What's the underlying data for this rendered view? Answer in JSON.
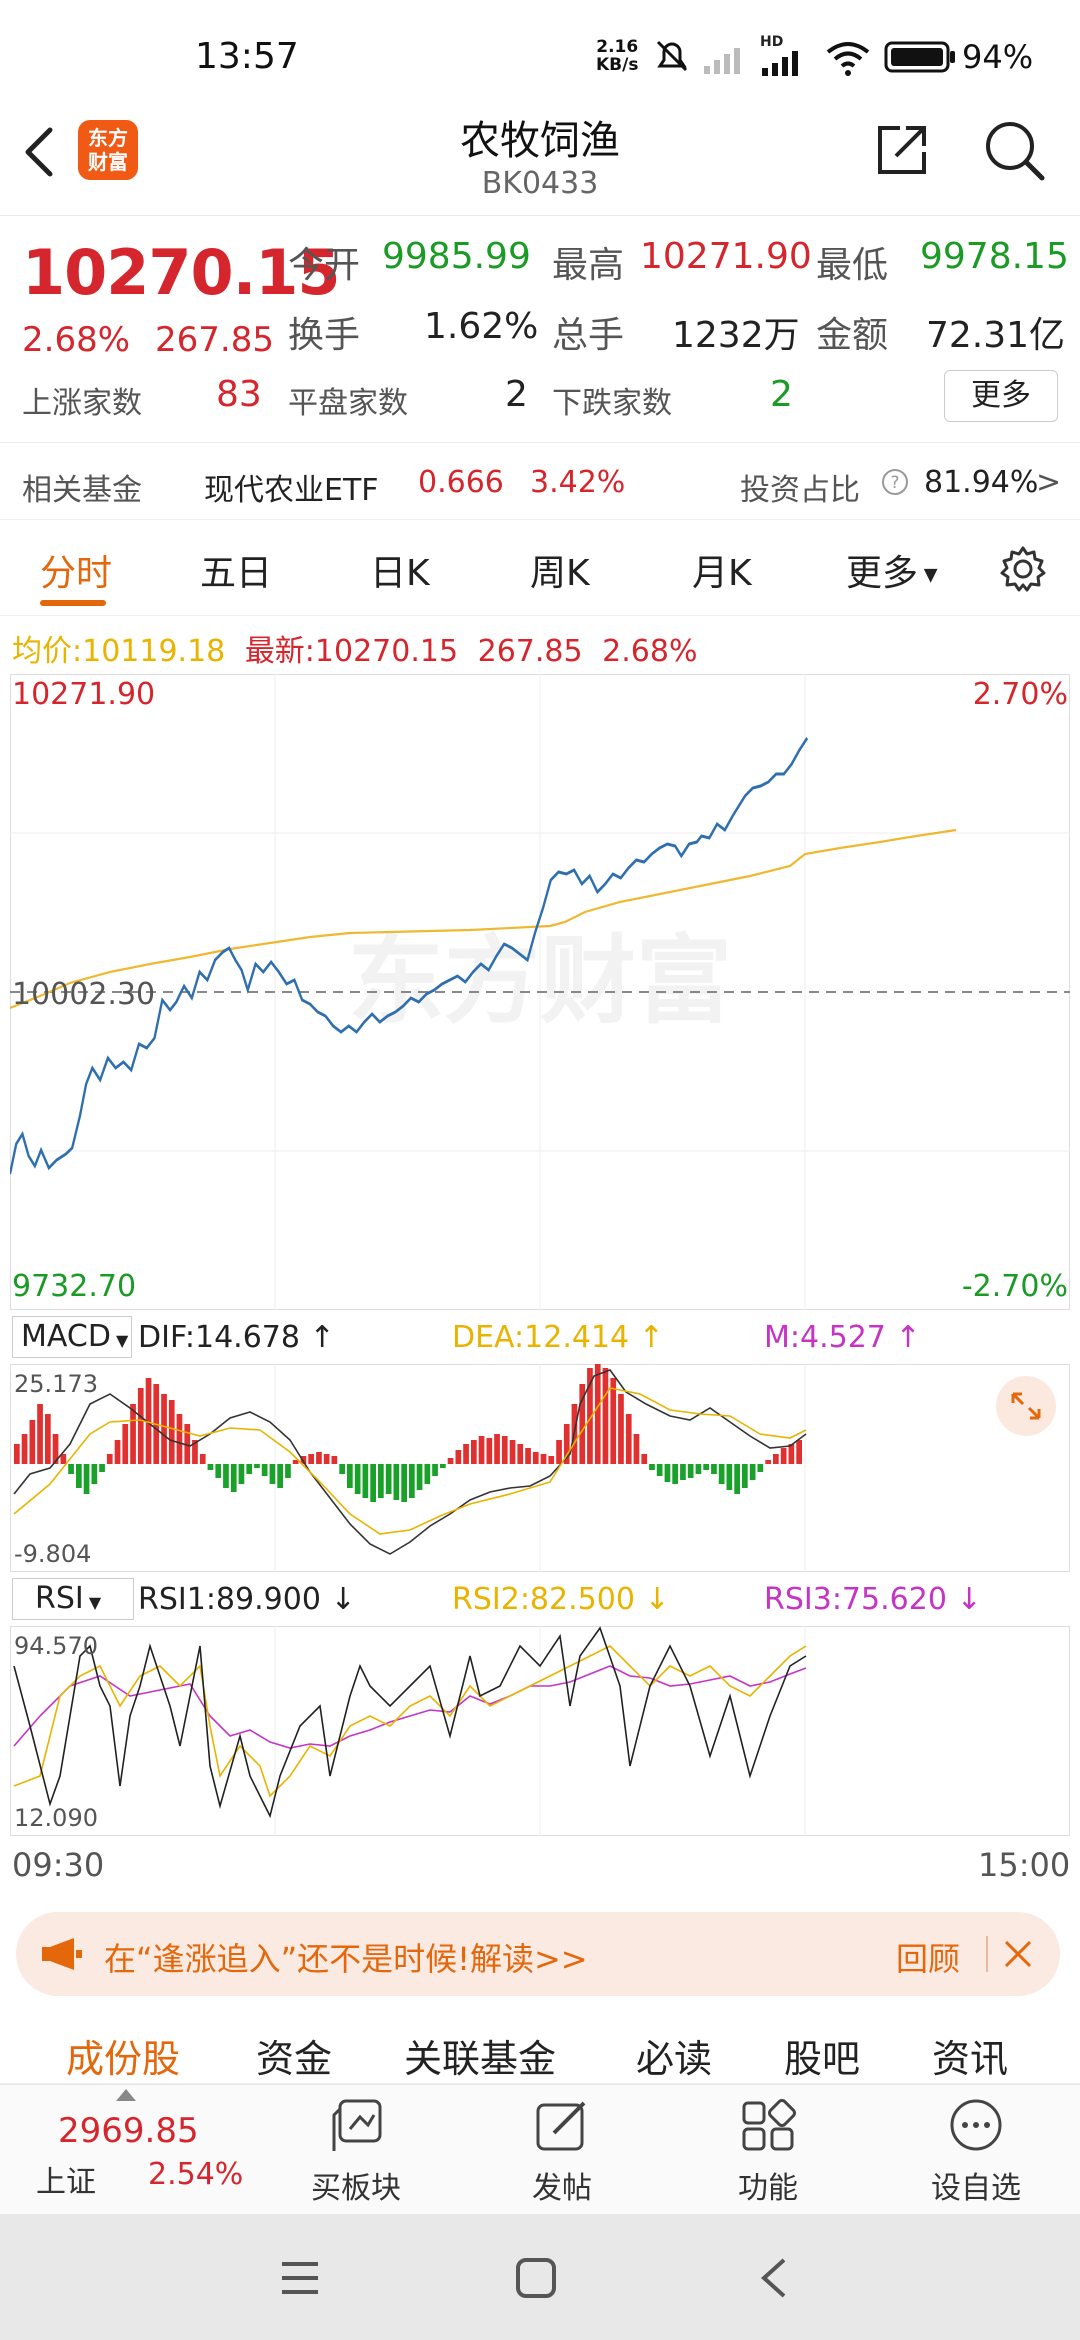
{
  "status_bar": {
    "time": "13:57",
    "net_speed_top": "2.16",
    "net_speed_bottom": "KB/s",
    "hd": "HD",
    "battery": "94%"
  },
  "header": {
    "logo_text": "东方\n财富",
    "logo_line1": "东方",
    "logo_line2": "财富",
    "title": "农牧饲渔",
    "code": "BK0433"
  },
  "quote": {
    "price": "10270.15",
    "change_pct": "2.68%",
    "change": "267.85",
    "open_label": "今开",
    "open": "9985.99",
    "high_label": "最高",
    "high": "10271.90",
    "low_label": "最低",
    "low": "9978.15",
    "turnover_label": "换手",
    "turnover": "1.62%",
    "volume_label": "总手",
    "volume": "1232万",
    "amount_label": "金额",
    "amount": "72.31亿",
    "up_label": "上涨家数",
    "up_count": "83",
    "flat_label": "平盘家数",
    "flat_count": "2",
    "down_label": "下跌家数",
    "down_count": "2",
    "more_label": "更多"
  },
  "fund": {
    "label": "相关基金",
    "name": "现代农业ETF",
    "price": "0.666",
    "pct": "3.42%",
    "ratio_label": "投资占比",
    "ratio": "81.94%",
    "ratio_arrow": ">"
  },
  "tabs": [
    "分时",
    "五日",
    "日K",
    "周K",
    "月K",
    "更多"
  ],
  "avg_line": {
    "avg_label": "均价:",
    "avg": "10119.18",
    "latest_label": "最新:",
    "latest": "10270.15",
    "change": "267.85",
    "pct": "2.68%"
  },
  "main_chart": {
    "y_high": "10271.90",
    "y_mid": "10002.30",
    "y_low": "9732.70",
    "pct_high": "2.70%",
    "pct_low": "-2.70%",
    "watermark": "东方财富",
    "price_color": "#2f6fb0",
    "avg_color": "#f0b830"
  },
  "macd": {
    "label": "MACD",
    "dif": "DIF:14.678",
    "dea": "DEA:12.414",
    "m": "M:4.527",
    "y_top": "25.173",
    "y_bottom": "-9.804",
    "up_color": "#e03030",
    "down_color": "#1aa12a"
  },
  "rsi": {
    "label": "RSI",
    "rsi1": "RSI1:89.900",
    "rsi2": "RSI2:82.500",
    "rsi3": "RSI3:75.620",
    "y_top": "94.570",
    "y_bottom": "12.090"
  },
  "time_axis": {
    "start": "09:30",
    "end": "15:00"
  },
  "banner": {
    "text": "在“逢涨追入”还不是时候!解读>>",
    "review": "回顾"
  },
  "bottom_tabs": [
    "成份股",
    "资金",
    "关联基金",
    "必读",
    "股吧",
    "资讯"
  ],
  "bottom_nav": {
    "index_value": "2969.85",
    "index_name": "上证",
    "index_pct": "2.54%",
    "items": [
      "买板块",
      "发帖",
      "功能",
      "设自选"
    ]
  }
}
